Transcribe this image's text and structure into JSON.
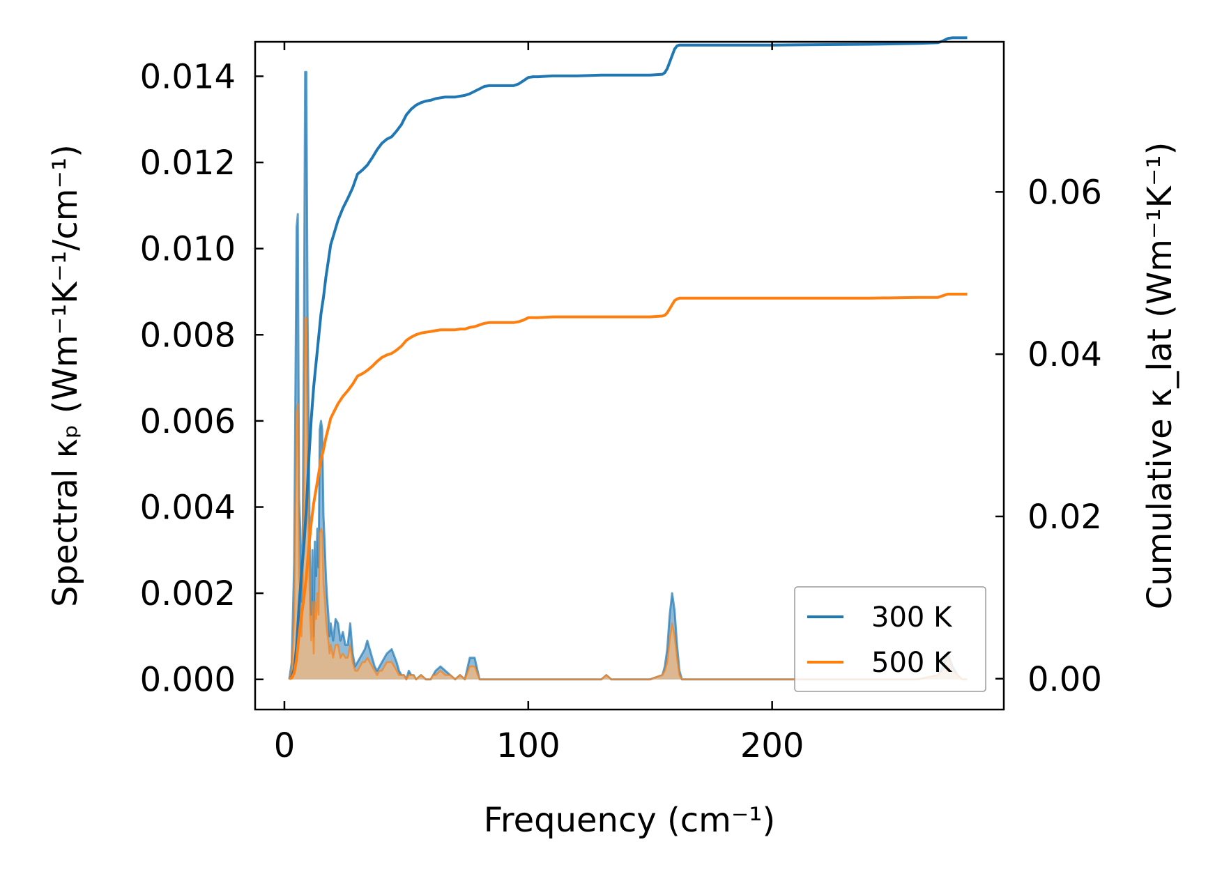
{
  "chart_data": {
    "type": "line",
    "xlabel": "Frequency (cm⁻¹)",
    "ylabel_left": "Spectral κₚ (Wm⁻¹K⁻¹/cm⁻¹)",
    "ylabel_right": "Cumulative κ_lat (Wm⁻¹K⁻¹)",
    "xlim": [
      -12,
      295
    ],
    "ylim_left": [
      -0.0007,
      0.0148
    ],
    "ylim_right": [
      -0.0038,
      0.0785
    ],
    "xticks": [
      0,
      100,
      200
    ],
    "xtick_labels": [
      "0",
      "100",
      "200"
    ],
    "yticks_left": [
      0,
      0.002,
      0.004,
      0.006,
      0.008,
      0.01,
      0.012,
      0.014
    ],
    "ytick_labels_left": [
      "0.000",
      "0.002",
      "0.004",
      "0.006",
      "0.008",
      "0.010",
      "0.012",
      "0.014"
    ],
    "yticks_right": [
      0,
      0.02,
      0.04,
      0.06
    ],
    "ytick_labels_right": [
      "0.00",
      "0.02",
      "0.04",
      "0.06"
    ],
    "legend": {
      "position": "lower-right",
      "entries": [
        "300 K",
        "500 K"
      ]
    },
    "colors": {
      "300 K": "#1f77b4",
      "500 K": "#ff7f0e",
      "fill_300": "#1f77b4",
      "fill_500": "#f4b67a"
    },
    "grid": false,
    "series": [
      {
        "name": "300 K",
        "kind": "spectral",
        "axis": "left",
        "x": [
          2,
          3,
          4,
          5,
          5.5,
          6,
          6.5,
          7,
          7.5,
          8,
          8.5,
          9,
          9.5,
          10,
          10.5,
          11,
          11.5,
          12,
          12.5,
          13,
          13.5,
          14,
          14.5,
          15,
          15.5,
          16,
          16.5,
          17,
          17.5,
          18,
          18.5,
          19,
          20,
          21,
          22,
          23,
          24,
          25,
          26,
          27,
          28,
          29,
          30,
          31,
          32,
          33,
          34,
          35,
          36,
          37,
          38,
          39,
          40,
          41,
          42,
          44,
          46,
          47,
          48,
          49,
          50,
          51,
          52,
          53,
          54,
          56,
          58,
          59,
          60,
          61,
          62,
          64,
          66,
          68,
          70,
          72,
          74,
          76,
          78,
          80,
          82,
          84,
          86,
          88,
          90,
          92,
          94,
          96,
          98,
          100,
          102,
          106,
          110,
          115,
          120,
          122,
          125,
          130,
          132,
          134,
          140,
          150,
          155,
          156,
          157,
          158,
          159,
          160,
          161,
          162,
          163,
          165,
          180,
          200,
          220,
          240,
          250,
          260,
          268,
          270,
          272,
          274,
          276,
          278,
          280
        ],
        "values": [
          0.0,
          0.0004,
          0.0027,
          0.0105,
          0.0108,
          0.0042,
          0.0035,
          0.0018,
          0.0032,
          0.0078,
          0.0141,
          0.0141,
          0.0085,
          0.0055,
          0.0025,
          0.0015,
          0.003,
          0.001,
          0.0032,
          0.0024,
          0.0035,
          0.0026,
          0.0058,
          0.006,
          0.0058,
          0.0038,
          0.0032,
          0.0024,
          0.0019,
          0.0015,
          0.001,
          0.0013,
          0.0009,
          0.0014,
          0.0013,
          0.0009,
          0.0011,
          0.0008,
          0.0008,
          0.0013,
          0.0006,
          0.0003,
          0.0004,
          0.0005,
          0.0006,
          0.0007,
          0.0009,
          0.0007,
          0.0005,
          0.0003,
          0.0002,
          0.0003,
          0.0004,
          0.0005,
          0.0006,
          0.0007,
          0.0004,
          0.0002,
          0.0001,
          0.0001,
          0.0,
          0.0002,
          0.0001,
          0.0001,
          0.0,
          0.0001,
          0.0,
          0.0,
          0.0,
          0.0001,
          0.0002,
          0.0003,
          0.0002,
          0.0001,
          0.0,
          0.0001,
          0.0,
          0.0005,
          0.0005,
          0.0,
          0.0,
          0.0,
          0.0,
          0.0,
          0.0,
          0.0,
          0.0,
          0.0,
          0.0,
          0.0,
          0.0,
          0.0,
          0.0,
          0.0,
          0.0,
          0.0,
          0.0,
          0.0,
          0.0001,
          0.0,
          0.0,
          0.0,
          0.0001,
          0.0003,
          0.0007,
          0.0015,
          0.002,
          0.0016,
          0.0008,
          0.0002,
          0.0,
          0.0,
          0.0,
          0.0,
          0.0,
          0.0,
          0.0,
          0.0,
          0.0001,
          0.0003,
          0.0006,
          0.0003,
          0.0001,
          0.0,
          0.0
        ]
      },
      {
        "name": "500 K",
        "kind": "spectral",
        "axis": "left",
        "x": [
          2,
          3,
          4,
          5,
          5.5,
          6,
          6.5,
          7,
          7.5,
          8,
          8.5,
          9,
          9.5,
          10,
          10.5,
          11,
          11.5,
          12,
          12.5,
          13,
          13.5,
          14,
          14.5,
          15,
          15.5,
          16,
          16.5,
          17,
          17.5,
          18,
          18.5,
          19,
          20,
          21,
          22,
          23,
          24,
          25,
          26,
          27,
          28,
          29,
          30,
          31,
          32,
          33,
          34,
          35,
          36,
          37,
          38,
          39,
          40,
          41,
          42,
          44,
          46,
          47,
          48,
          49,
          50,
          51,
          52,
          53,
          54,
          56,
          58,
          59,
          60,
          61,
          62,
          64,
          66,
          68,
          70,
          72,
          74,
          76,
          78,
          80,
          82,
          84,
          86,
          88,
          90,
          92,
          94,
          96,
          98,
          100,
          102,
          106,
          110,
          115,
          120,
          122,
          125,
          130,
          132,
          134,
          140,
          150,
          155,
          156,
          157,
          158,
          159,
          160,
          161,
          162,
          163,
          165,
          180,
          200,
          220,
          240,
          250,
          260,
          268,
          270,
          272,
          274,
          276,
          278,
          280
        ],
        "values": [
          0.0,
          0.0002,
          0.0015,
          0.0062,
          0.0064,
          0.0024,
          0.002,
          0.001,
          0.0018,
          0.0046,
          0.0084,
          0.0084,
          0.005,
          0.0032,
          0.0015,
          0.0009,
          0.0018,
          0.0006,
          0.0018,
          0.0014,
          0.002,
          0.0015,
          0.0034,
          0.0035,
          0.0034,
          0.0022,
          0.0019,
          0.0014,
          0.0011,
          0.0009,
          0.0006,
          0.0008,
          0.0005,
          0.0008,
          0.0008,
          0.0005,
          0.0006,
          0.0005,
          0.0005,
          0.0008,
          0.0004,
          0.0002,
          0.0002,
          0.0003,
          0.0004,
          0.0004,
          0.0005,
          0.0004,
          0.0003,
          0.0002,
          0.0001,
          0.0002,
          0.0002,
          0.0003,
          0.0004,
          0.0004,
          0.0002,
          0.0001,
          0.0001,
          0.0001,
          0.0,
          0.0001,
          0.0001,
          0.0001,
          0.0,
          0.0001,
          0.0,
          0.0,
          0.0,
          0.0001,
          0.0001,
          0.0002,
          0.0001,
          0.0001,
          0.0,
          0.0001,
          0.0,
          0.0003,
          0.0003,
          0.0,
          0.0,
          0.0,
          0.0,
          0.0,
          0.0,
          0.0,
          0.0,
          0.0,
          0.0,
          0.0,
          0.0,
          0.0,
          0.0,
          0.0,
          0.0,
          0.0,
          0.0,
          0.0,
          0.0001,
          0.0,
          0.0,
          0.0,
          0.0001,
          0.0002,
          0.0004,
          0.0009,
          0.0013,
          0.001,
          0.0005,
          0.0001,
          0.0,
          0.0,
          0.0,
          0.0,
          0.0,
          0.0,
          0.0,
          0.0,
          0.0001,
          0.0002,
          0.0005,
          0.0002,
          0.0001,
          0.0,
          0.0
        ]
      },
      {
        "name": "300 K",
        "kind": "cumulative",
        "axis": "right",
        "x": [
          2,
          3,
          4,
          5,
          6,
          7,
          8,
          9,
          10,
          11,
          12,
          13,
          14,
          15,
          16,
          17,
          18,
          19,
          20,
          22,
          24,
          26,
          28,
          30,
          32,
          34,
          36,
          38,
          40,
          42,
          44,
          46,
          48,
          50,
          52,
          54,
          56,
          58,
          60,
          62,
          64,
          66,
          68,
          70,
          72,
          74,
          76,
          78,
          80,
          82,
          84,
          86,
          88,
          90,
          92,
          94,
          96,
          98,
          100,
          102,
          104,
          110,
          120,
          130,
          140,
          150,
          155,
          156,
          157,
          158,
          159,
          160,
          161,
          162,
          164,
          170,
          200,
          240,
          260,
          268,
          270,
          272,
          274,
          276,
          280
        ],
        "values": [
          0.0,
          0.0002,
          0.0012,
          0.004,
          0.009,
          0.013,
          0.0165,
          0.021,
          0.027,
          0.032,
          0.036,
          0.039,
          0.042,
          0.045,
          0.047,
          0.0495,
          0.0515,
          0.0535,
          0.0545,
          0.0565,
          0.058,
          0.0592,
          0.0605,
          0.0622,
          0.0627,
          0.0633,
          0.0642,
          0.0652,
          0.066,
          0.0665,
          0.0668,
          0.0675,
          0.0683,
          0.0695,
          0.0702,
          0.0707,
          0.071,
          0.0712,
          0.0713,
          0.0715,
          0.0716,
          0.0717,
          0.0717,
          0.0717,
          0.0718,
          0.0719,
          0.0721,
          0.0724,
          0.0727,
          0.073,
          0.0731,
          0.0731,
          0.0731,
          0.0731,
          0.0731,
          0.0731,
          0.0733,
          0.0737,
          0.0741,
          0.0742,
          0.0742,
          0.0743,
          0.0743,
          0.0744,
          0.0744,
          0.0744,
          0.0745,
          0.0747,
          0.0752,
          0.076,
          0.0768,
          0.0776,
          0.078,
          0.0781,
          0.0781,
          0.0781,
          0.0781,
          0.0782,
          0.0783,
          0.0784,
          0.0786,
          0.0789,
          0.079,
          0.079,
          0.079
        ]
      },
      {
        "name": "500 K",
        "kind": "cumulative",
        "axis": "right",
        "x": [
          2,
          3,
          4,
          5,
          6,
          7,
          8,
          9,
          10,
          11,
          12,
          13,
          14,
          15,
          16,
          17,
          18,
          19,
          20,
          22,
          24,
          26,
          28,
          30,
          32,
          34,
          36,
          38,
          40,
          42,
          44,
          46,
          48,
          50,
          52,
          54,
          56,
          58,
          60,
          62,
          64,
          66,
          68,
          70,
          72,
          74,
          76,
          78,
          80,
          82,
          84,
          86,
          88,
          90,
          92,
          94,
          96,
          98,
          100,
          102,
          104,
          110,
          120,
          130,
          140,
          150,
          155,
          156,
          157,
          158,
          159,
          160,
          161,
          162,
          164,
          170,
          200,
          240,
          260,
          268,
          270,
          272,
          274,
          276,
          280
        ],
        "values": [
          0.0,
          0.0001,
          0.0007,
          0.0024,
          0.0054,
          0.0078,
          0.0099,
          0.0126,
          0.0162,
          0.0192,
          0.0216,
          0.0234,
          0.0252,
          0.027,
          0.0282,
          0.0297,
          0.0309,
          0.0321,
          0.0327,
          0.0339,
          0.0348,
          0.0355,
          0.0363,
          0.0373,
          0.0376,
          0.038,
          0.0385,
          0.0391,
          0.0396,
          0.0399,
          0.0401,
          0.0405,
          0.041,
          0.0417,
          0.0421,
          0.0424,
          0.0426,
          0.0427,
          0.0428,
          0.0429,
          0.043,
          0.043,
          0.043,
          0.043,
          0.0431,
          0.0431,
          0.0433,
          0.0434,
          0.0436,
          0.0438,
          0.0439,
          0.0439,
          0.0439,
          0.0439,
          0.0439,
          0.0439,
          0.044,
          0.0442,
          0.0445,
          0.0445,
          0.0445,
          0.0446,
          0.0446,
          0.0446,
          0.0446,
          0.0446,
          0.0447,
          0.0448,
          0.0451,
          0.0456,
          0.0461,
          0.0466,
          0.0468,
          0.0469,
          0.0469,
          0.0469,
          0.0469,
          0.0469,
          0.047,
          0.047,
          0.0472,
          0.0474,
          0.0474,
          0.0474,
          0.0474
        ]
      }
    ]
  }
}
